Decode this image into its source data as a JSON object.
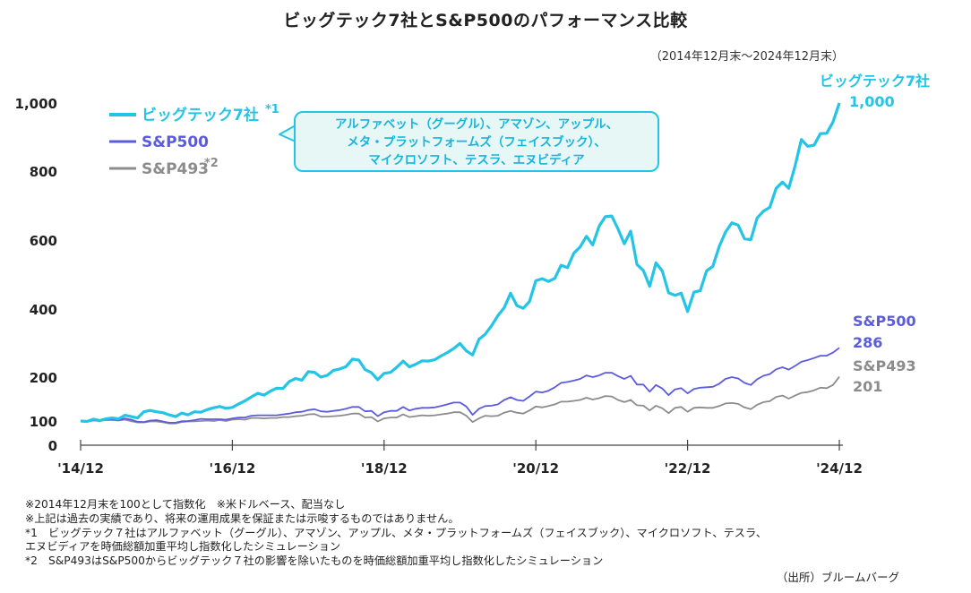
{
  "title": "ビッグテック7社とS&P500のパフォーマンス比較",
  "period_note": "（2014年12月末〜2024年12月末）",
  "callout": {
    "lines": [
      "アルファベット（グーグル）、アマゾン、アップル、",
      "メタ・プラットフォームズ（フェイスブック）、",
      "マイクロソフト、テスラ、エヌビディア"
    ]
  },
  "notes": [
    "※2014年12月末を100として指数化　※米ドルベース、配当なし",
    "※上記は過去の実績であり、将来の運用成果を保証または示唆するものではありません。",
    "*1　ビッグテック７社はアルファベット（グーグル）、アマゾン、アップル、メタ・プラットフォームズ（フェイスブック）、マイクロソフト、テスラ、",
    "エヌビディアを時価総額加重平均し指数化したシミュレーション",
    "*2　S&P493はS&P500からビッグテック７社の影響を除いたものを時価総額加重平均し指数化したシミュレーション"
  ],
  "source": "（出所）ブルームバーグ",
  "colors": {
    "bigtech": "#23c4e6",
    "sp500": "#5b5be0",
    "sp493": "#8c8c8c"
  },
  "chart_data": {
    "type": "line",
    "x_ticks": [
      "'14/12",
      "'16/12",
      "'18/12",
      "'20/12",
      "'22/12",
      "'24/12"
    ],
    "y_ticks": [
      "1,000",
      "800",
      "600",
      "400",
      "200",
      "100",
      "0"
    ],
    "y_tick_values": [
      1000,
      800,
      600,
      400,
      200,
      100,
      0
    ],
    "ylim": [
      0,
      1000
    ],
    "xlim": [
      0,
      120
    ],
    "x_unit": "months since 2014/12",
    "series": [
      {
        "name": "ビッグテック7社",
        "legend": "ビッグテック7社",
        "legend_mark": "*1",
        "end_label": "ビッグテック7社",
        "end_value": "1,000",
        "x": [
          0,
          1,
          2,
          3,
          4,
          5,
          6,
          7,
          8,
          9,
          10,
          11,
          12,
          13,
          14,
          15,
          16,
          17,
          18,
          19,
          20,
          21,
          22,
          23,
          24,
          25,
          26,
          27,
          28,
          29,
          30,
          31,
          32,
          33,
          34,
          35,
          36,
          37,
          38,
          39,
          40,
          41,
          42,
          43,
          44,
          45,
          46,
          47,
          48,
          49,
          50,
          51,
          52,
          53,
          54,
          55,
          56,
          57,
          58,
          59,
          60,
          61,
          62,
          63,
          64,
          65,
          66,
          67,
          68,
          69,
          70,
          71,
          72,
          73,
          74,
          75,
          76,
          77,
          78,
          79,
          80,
          81,
          82,
          83,
          84,
          85,
          86,
          87,
          88,
          89,
          90,
          91,
          92,
          93,
          94,
          95,
          96,
          97,
          98,
          99,
          100,
          101,
          102,
          103,
          104,
          105,
          106,
          107,
          108,
          109,
          110,
          111,
          112,
          113,
          114,
          115,
          116,
          117,
          118,
          119,
          120
        ],
        "y": [
          100,
          98,
          104,
          101,
          105,
          107,
          105,
          113,
          110,
          107,
          121,
          124,
          121,
          119,
          114,
          110,
          118,
          114,
          121,
          120,
          126,
          130,
          133,
          129,
          131,
          139,
          146,
          155,
          163,
          159,
          168,
          175,
          174,
          190,
          197,
          193,
          216,
          214,
          200,
          205,
          220,
          224,
          231,
          253,
          250,
          222,
          213,
          194,
          211,
          214,
          229,
          247,
          230,
          238,
          248,
          247,
          251,
          262,
          272,
          284,
          299,
          277,
          265,
          311,
          326,
          351,
          381,
          404,
          446,
          410,
          402,
          422,
          482,
          488,
          480,
          489,
          527,
          520,
          562,
          580,
          611,
          586,
          640,
          668,
          670,
          632,
          589,
          626,
          529,
          512,
          466,
          534,
          510,
          447,
          440,
          446,
          393,
          449,
          453,
          511,
          524,
          581,
          623,
          650,
          643,
          604,
          601,
          664,
          684,
          695,
          750,
          768,
          750,
          815,
          893,
          873,
          876,
          910,
          911,
          944,
          1000
        ]
      },
      {
        "name": "S&P500",
        "legend": "S&P500",
        "legend_mark": "",
        "end_label": "S&P500",
        "end_value": "286",
        "x": [
          0,
          1,
          2,
          3,
          4,
          5,
          6,
          7,
          8,
          9,
          10,
          11,
          12,
          13,
          14,
          15,
          16,
          17,
          18,
          19,
          20,
          21,
          22,
          23,
          24,
          25,
          26,
          27,
          28,
          29,
          30,
          31,
          32,
          33,
          34,
          35,
          36,
          37,
          38,
          39,
          40,
          41,
          42,
          43,
          44,
          45,
          46,
          47,
          48,
          49,
          50,
          51,
          52,
          53,
          54,
          55,
          56,
          57,
          58,
          59,
          60,
          61,
          62,
          63,
          64,
          65,
          66,
          67,
          68,
          69,
          70,
          71,
          72,
          73,
          74,
          75,
          76,
          77,
          78,
          79,
          80,
          81,
          82,
          83,
          84,
          85,
          86,
          87,
          88,
          89,
          90,
          91,
          92,
          93,
          94,
          95,
          96,
          97,
          98,
          99,
          100,
          101,
          102,
          103,
          104,
          105,
          106,
          107,
          108,
          109,
          110,
          111,
          112,
          113,
          114,
          115,
          116,
          117,
          118,
          119,
          120
        ],
        "y": [
          100,
          97,
          102,
          101,
          103,
          104,
          102,
          106,
          103,
          97,
          96,
          101,
          102,
          98,
          93,
          93,
          99,
          100,
          102,
          105,
          104,
          104,
          104,
          103,
          106,
          108,
          108,
          112,
          113,
          113,
          113,
          113,
          115,
          117,
          120,
          121,
          125,
          127,
          122,
          121,
          123,
          125,
          128,
          132,
          132,
          122,
          123,
          111,
          120,
          123,
          123,
          132,
          124,
          128,
          130,
          130,
          131,
          134,
          138,
          142,
          142,
          133,
          114,
          128,
          134,
          135,
          138,
          148,
          154,
          148,
          146,
          156,
          167,
          165,
          169,
          177,
          187,
          189,
          192,
          196,
          205,
          200,
          205,
          213,
          213,
          203,
          196,
          204,
          183,
          183,
          167,
          182,
          174,
          159,
          172,
          175,
          163,
          173,
          176,
          177,
          178,
          185,
          196,
          200,
          197,
          187,
          182,
          195,
          204,
          209,
          223,
          229,
          222,
          233,
          245,
          250,
          256,
          263,
          263,
          272,
          286
        ]
      },
      {
        "name": "S&P493",
        "legend": "S&P493",
        "legend_mark": "*2",
        "end_label": "S&P493",
        "end_value": "201",
        "x": [
          0,
          1,
          2,
          3,
          4,
          5,
          6,
          7,
          8,
          9,
          10,
          11,
          12,
          13,
          14,
          15,
          16,
          17,
          18,
          19,
          20,
          21,
          22,
          23,
          24,
          25,
          26,
          27,
          28,
          29,
          30,
          31,
          32,
          33,
          34,
          35,
          36,
          37,
          38,
          39,
          40,
          41,
          42,
          43,
          44,
          45,
          46,
          47,
          48,
          49,
          50,
          51,
          52,
          53,
          54,
          55,
          56,
          57,
          58,
          59,
          60,
          61,
          62,
          63,
          64,
          65,
          66,
          67,
          68,
          69,
          70,
          71,
          72,
          73,
          74,
          75,
          76,
          77,
          78,
          79,
          80,
          81,
          82,
          83,
          84,
          85,
          86,
          87,
          88,
          89,
          90,
          91,
          92,
          93,
          94,
          95,
          96,
          97,
          98,
          99,
          100,
          101,
          102,
          103,
          104,
          105,
          106,
          107,
          108,
          109,
          110,
          111,
          112,
          113,
          114,
          115,
          116,
          117,
          118,
          119,
          120
        ],
        "y": [
          100,
          97,
          101,
          100,
          102,
          102,
          101,
          103,
          99,
          94,
          94,
          98,
          98,
          95,
          90,
          90,
          96,
          98,
          99,
          100,
          101,
          100,
          102,
          100,
          103,
          104,
          103,
          107,
          107,
          106,
          107,
          107,
          109,
          109,
          111,
          112,
          115,
          116,
          110,
          110,
          111,
          112,
          114,
          117,
          117,
          108,
          109,
          98,
          106,
          108,
          108,
          115,
          109,
          111,
          113,
          112,
          113,
          115,
          117,
          120,
          120,
          112,
          96,
          106,
          112,
          111,
          112,
          119,
          123,
          119,
          117,
          124,
          133,
          131,
          134,
          138,
          144,
          144,
          146,
          148,
          153,
          149,
          152,
          157,
          156,
          148,
          143,
          148,
          136,
          135,
          124,
          135,
          129,
          118,
          130,
          132,
          121,
          130,
          131,
          130,
          130,
          134,
          140,
          141,
          139,
          131,
          127,
          137,
          143,
          145,
          155,
          158,
          151,
          158,
          164,
          166,
          170,
          176,
          175,
          182,
          201
        ]
      }
    ]
  }
}
